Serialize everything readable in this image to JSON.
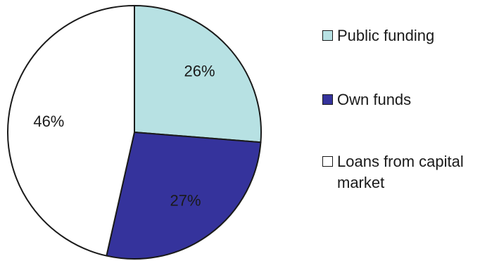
{
  "chart_data": {
    "type": "pie",
    "title": "",
    "slices": [
      {
        "label": "Public funding",
        "value": 26,
        "display": "26%",
        "color": "#b7e1e3"
      },
      {
        "label": "Own funds",
        "value": 27,
        "display": "27%",
        "color": "#35339c"
      },
      {
        "label": "Loans from capital market",
        "value": 46,
        "display": "46%",
        "color": "#ffffff"
      }
    ],
    "start_angle_deg": 0,
    "direction": "clockwise",
    "outline_color": "#1a1a1a",
    "legend_position": "right"
  }
}
